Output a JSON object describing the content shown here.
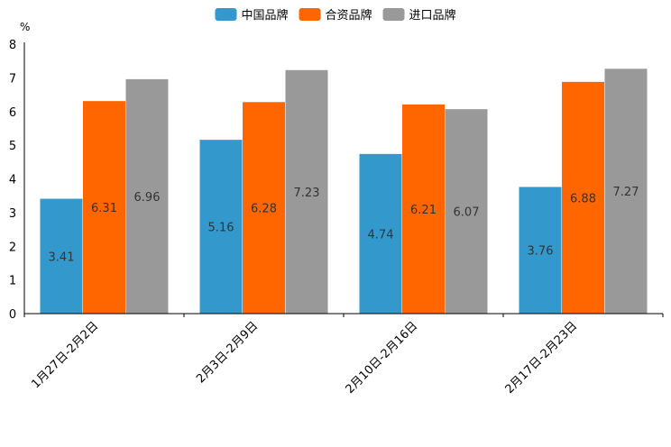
{
  "chart_data": {
    "type": "bar",
    "title": "",
    "unit": "%",
    "xlabel": "",
    "ylabel": "%",
    "ylim": [
      0,
      8
    ],
    "yticks": [
      0,
      1,
      2,
      3,
      4,
      5,
      6,
      7,
      8
    ],
    "grid": false,
    "legend_position": "top-center",
    "categories": [
      "1月27日-2月2日",
      "2月3日-2月9日",
      "2月10日-2月16日",
      "2月17日-2月23日"
    ],
    "series": [
      {
        "name": "中国品牌",
        "color": "#3399cc",
        "values": [
          3.41,
          5.16,
          4.74,
          3.76
        ]
      },
      {
        "name": "合资品牌",
        "color": "#ff6600",
        "values": [
          6.31,
          6.28,
          6.21,
          6.88
        ]
      },
      {
        "name": "进口品牌",
        "color": "#999999",
        "values": [
          6.96,
          7.23,
          6.07,
          7.27
        ]
      }
    ]
  }
}
